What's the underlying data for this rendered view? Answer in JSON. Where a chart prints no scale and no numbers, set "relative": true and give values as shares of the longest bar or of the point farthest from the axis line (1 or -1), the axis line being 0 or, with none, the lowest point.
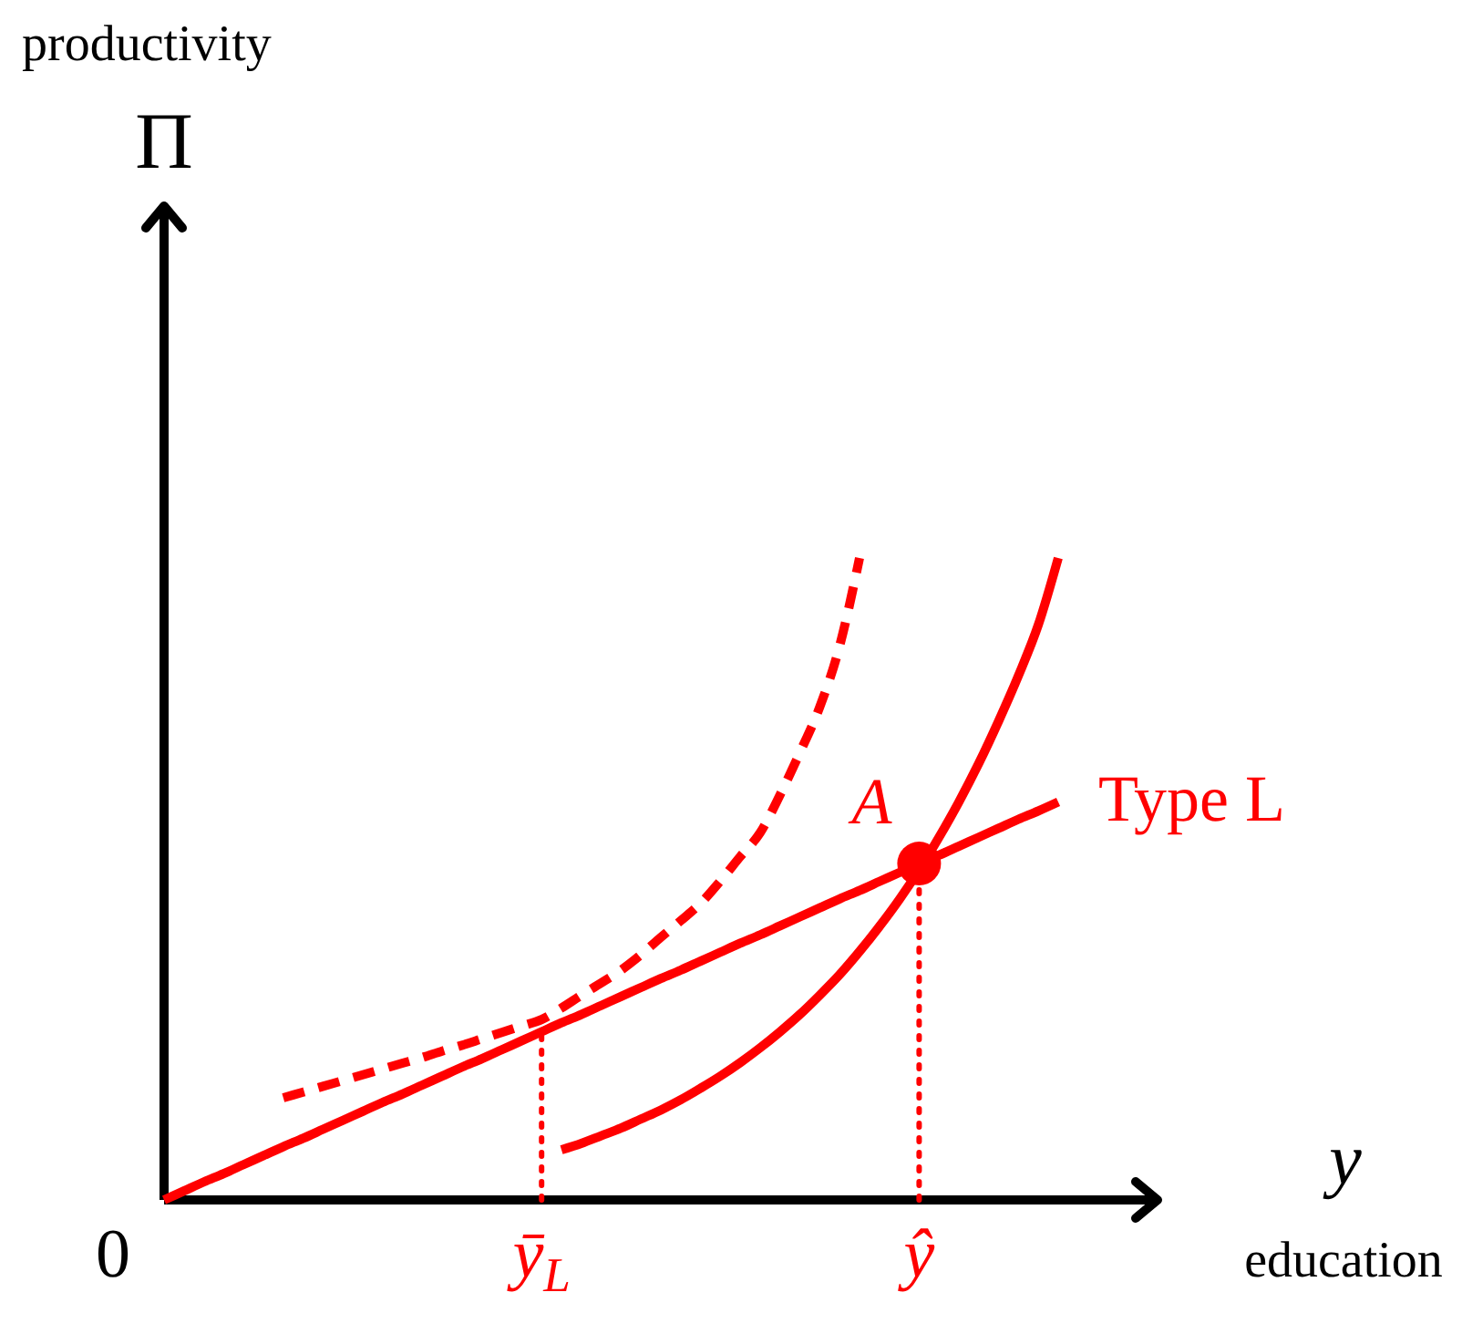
{
  "chart_data": {
    "type": "line",
    "relative": true,
    "ylabel": "Π",
    "xlabel": "y",
    "annotations": [
      "productivity",
      "education",
      "0"
    ],
    "categories": [
      null,
      null,
      null,
      null,
      null,
      null,
      null,
      null,
      null,
      null,
      null,
      null,
      null,
      null,
      null,
      null,
      null,
      null,
      null,
      "ȳ$_{L}$",
      null,
      null,
      null,
      null,
      null,
      null,
      null,
      null,
      null,
      null,
      null,
      null,
      null,
      null,
      null,
      null,
      null,
      null,
      "ŷ",
      null,
      null,
      null,
      null,
      null,
      null,
      null,
      null,
      null,
      null,
      null,
      null
    ],
    "grid": false,
    "legend": false,
    "series": [
      {
        "name": "Type L",
        "color": "#ff0000",
        "line_style": "solid",
        "values": [
          0,
          0.014,
          0.028,
          0.041,
          0.055,
          0.069,
          0.083,
          0.096,
          0.11,
          0.124,
          0.138,
          0.152,
          0.165,
          0.179,
          0.193,
          0.207,
          0.22,
          0.234,
          0.248,
          0.262,
          0.276,
          0.289,
          0.303,
          0.317,
          0.331,
          0.345,
          0.358,
          0.372,
          0.386,
          0.4,
          0.413,
          0.427,
          0.441,
          0.455,
          0.469,
          0.482,
          0.496,
          0.51,
          0.524,
          0.537,
          0.551,
          0.565,
          0.579,
          0.593,
          0.606,
          0.62,
          null,
          null,
          null,
          null,
          null
        ]
      },
      {
        "color": "#ff0000",
        "line_style": "solid",
        "values": [
          null,
          null,
          null,
          null,
          null,
          null,
          null,
          null,
          null,
          null,
          null,
          null,
          null,
          null,
          null,
          null,
          null,
          null,
          null,
          null,
          0.078,
          0.088,
          0.1,
          0.112,
          0.126,
          0.14,
          0.156,
          0.174,
          0.193,
          0.214,
          0.237,
          0.262,
          0.289,
          0.319,
          0.351,
          0.387,
          0.426,
          0.468,
          0.514,
          0.565,
          0.62,
          0.68,
          0.746,
          0.817,
          0.896,
          1,
          null,
          null,
          null,
          null,
          null
        ]
      },
      {
        "color": "#ff0000",
        "line_style": "dashed",
        "values": [
          null,
          null,
          null,
          null,
          null,
          null,
          0.159,
          0.168,
          0.177,
          0.186,
          0.195,
          0.204,
          0.213,
          0.222,
          0.232,
          0.241,
          0.251,
          0.261,
          0.271,
          0.281,
          0.299,
          0.319,
          0.338,
          0.358,
          0.382,
          0.409,
          0.435,
          0.462,
          0.497,
          0.535,
          0.572,
          0.631,
          0.697,
          0.768,
          0.863,
          1,
          null,
          null,
          null,
          null,
          null,
          null,
          null,
          null,
          null,
          null,
          null,
          null,
          null,
          null,
          null
        ]
      },
      {
        "color": "#ff0000",
        "line_style": "dotted",
        "x": [
          "ȳ$_{L}$",
          "ȳ$_{L}$"
        ],
        "values": [
          0,
          0.262
        ]
      },
      {
        "color": "#ff0000",
        "line_style": "dotted",
        "x": [
          "ŷ",
          "ŷ"
        ],
        "values": [
          0,
          0.524
        ]
      },
      {
        "type": "scatter",
        "name": "A",
        "color": "#ff0000",
        "marker": "circle",
        "values": [
          null,
          null,
          null,
          null,
          null,
          null,
          null,
          null,
          null,
          null,
          null,
          null,
          null,
          null,
          null,
          null,
          null,
          null,
          null,
          null,
          null,
          null,
          null,
          null,
          null,
          null,
          null,
          null,
          null,
          null,
          null,
          null,
          null,
          null,
          null,
          null,
          null,
          null,
          0.524,
          null,
          null,
          null,
          null,
          null,
          null,
          null,
          null,
          null,
          null,
          null,
          null
        ]
      }
    ]
  }
}
